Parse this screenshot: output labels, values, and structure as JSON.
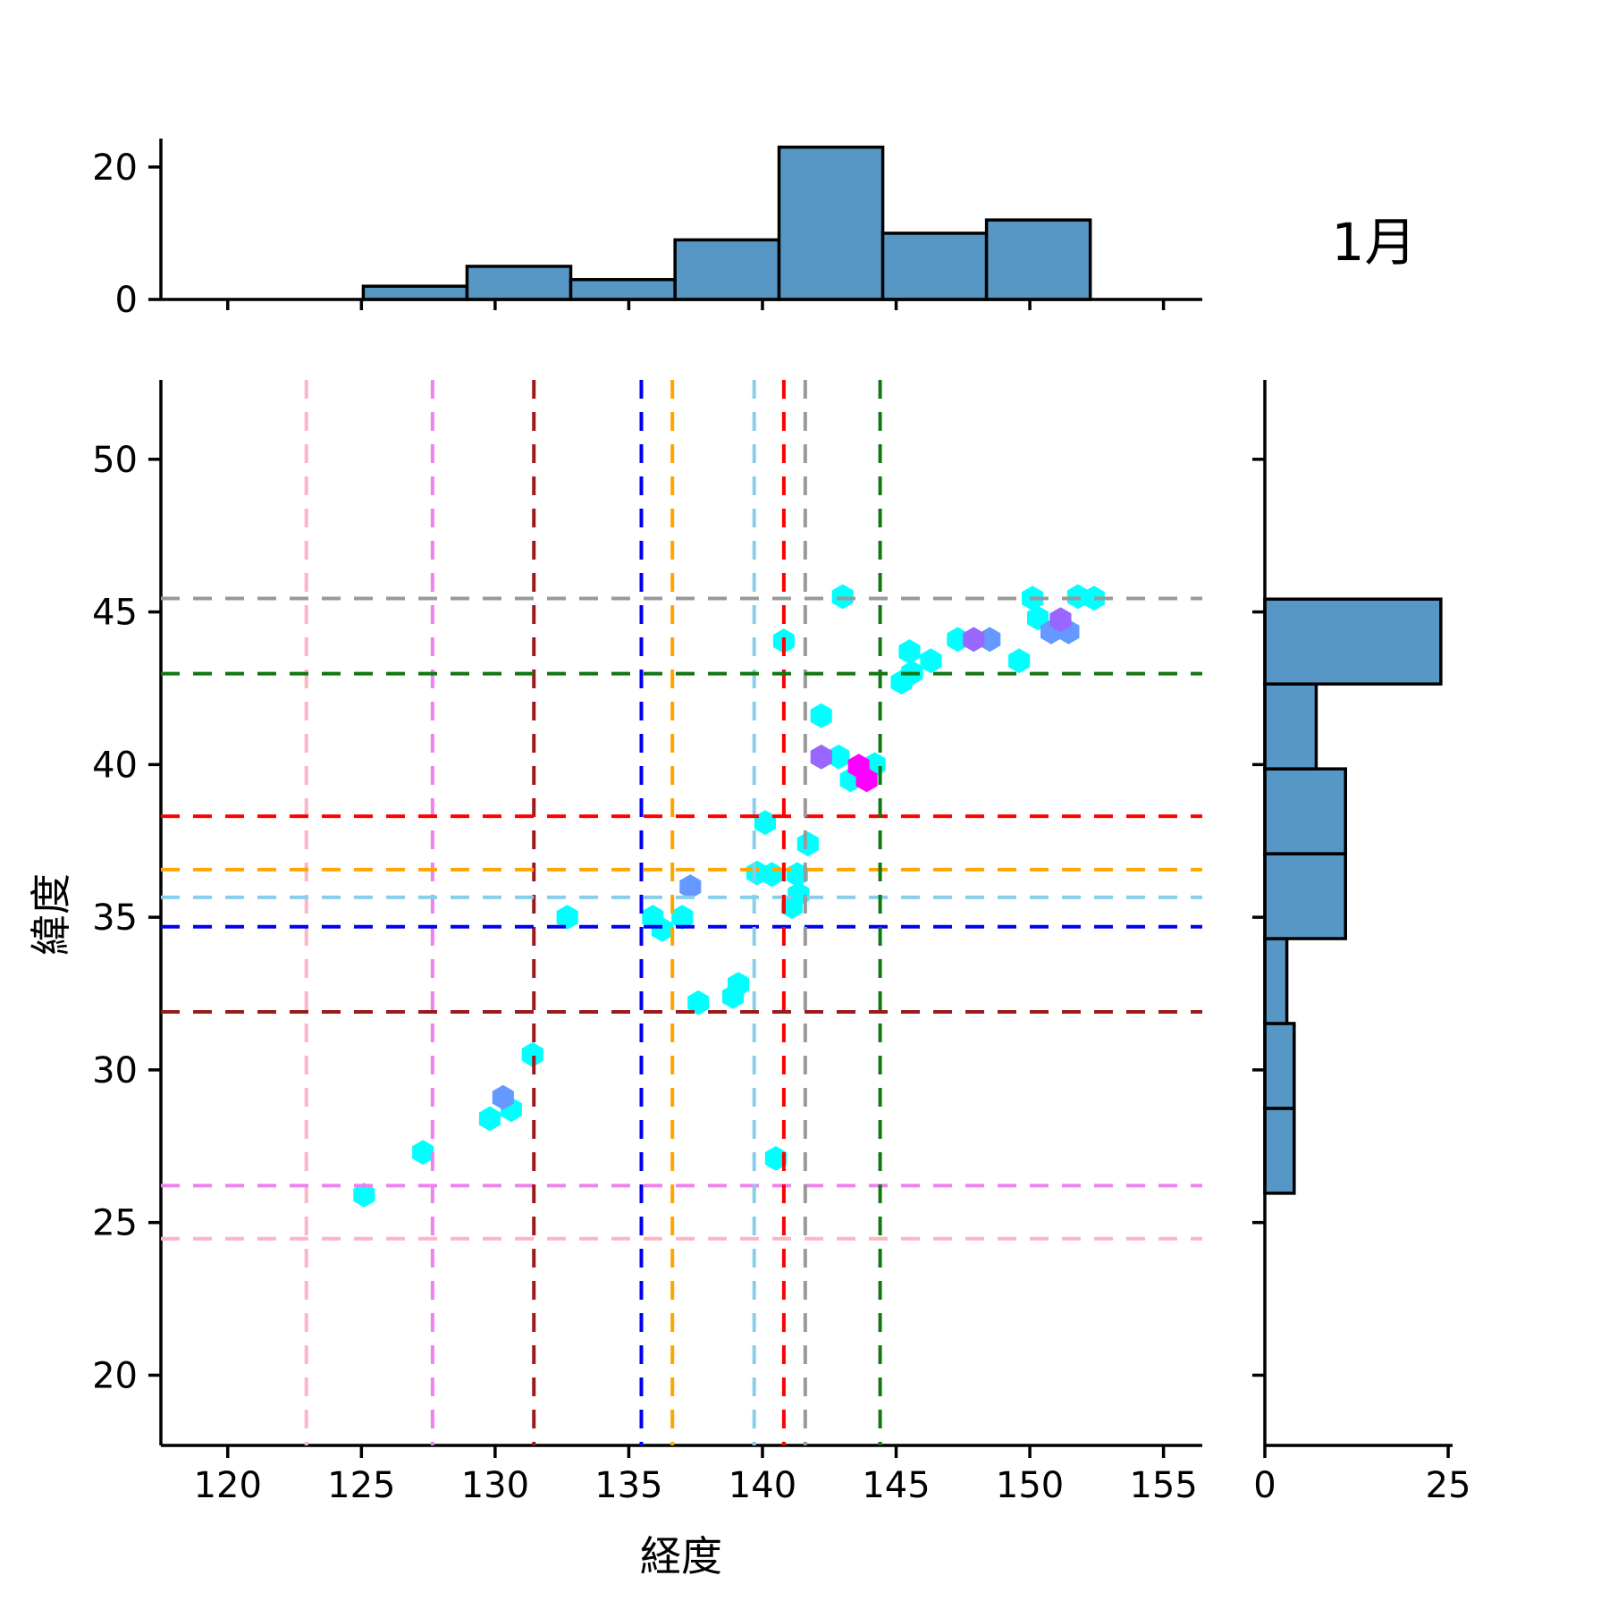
{
  "title": "1月",
  "axes": {
    "xlabel": "経度",
    "ylabel": "緯度"
  },
  "colors": {
    "bar_fill": "#5797c6",
    "bar_edge": "#000000",
    "spine": "#000000",
    "cyan": "#00ffff",
    "blue": "#6699ff",
    "purple": "#9966ff",
    "magenta": "#ff00ff"
  },
  "chart_data": [
    {
      "id": "top-histogram",
      "type": "bar",
      "orientation": "vertical",
      "title": "",
      "xlabel": "",
      "ylabel": "",
      "bin_edges": [
        125.07,
        128.95,
        132.83,
        136.73,
        140.62,
        144.5,
        148.38,
        152.26
      ],
      "counts": [
        2,
        5,
        3,
        9,
        23,
        10,
        12
      ],
      "xlim": [
        117.5,
        156.45
      ],
      "ylim": [
        0,
        24.3
      ],
      "yticks": [
        0,
        20
      ],
      "grid": false
    },
    {
      "id": "main-scatter",
      "type": "scatter",
      "marker": "hexagon",
      "xlabel": "経度",
      "ylabel": "緯度",
      "xlim": [
        117.5,
        156.45
      ],
      "ylim": [
        17.7,
        52.6
      ],
      "xticks": [
        120,
        125,
        130,
        135,
        140,
        145,
        150,
        155
      ],
      "yticks": [
        20,
        25,
        30,
        35,
        40,
        45,
        50
      ],
      "grid": false,
      "legend": "none",
      "series": [
        {
          "name": "cool-cmap-cyan",
          "color": "#00ffff",
          "points": [
            [
              143.0,
              45.5
            ],
            [
              150.1,
              45.45
            ],
            [
              151.8,
              45.5
            ],
            [
              152.4,
              45.45
            ],
            [
              150.3,
              44.8
            ],
            [
              147.3,
              44.1
            ],
            [
              140.8,
              44.05
            ],
            [
              149.6,
              43.4
            ],
            [
              145.5,
              43.7
            ],
            [
              146.3,
              43.4
            ],
            [
              145.6,
              43.0
            ],
            [
              145.2,
              42.7
            ],
            [
              142.2,
              41.6
            ],
            [
              142.85,
              40.25
            ],
            [
              144.2,
              40.0
            ],
            [
              143.3,
              39.5
            ],
            [
              140.1,
              38.1
            ],
            [
              141.7,
              37.4
            ],
            [
              139.8,
              36.45
            ],
            [
              140.35,
              36.4
            ],
            [
              141.3,
              36.4
            ],
            [
              141.35,
              35.75
            ],
            [
              141.1,
              35.35
            ],
            [
              132.7,
              35.0
            ],
            [
              135.9,
              35.0
            ],
            [
              137.0,
              35.0
            ],
            [
              136.25,
              34.6
            ],
            [
              139.1,
              32.8
            ],
            [
              138.9,
              32.4
            ],
            [
              137.6,
              32.2
            ],
            [
              131.4,
              30.5
            ],
            [
              130.6,
              28.7
            ],
            [
              129.8,
              28.4
            ],
            [
              127.3,
              27.3
            ],
            [
              140.5,
              27.1
            ],
            [
              125.1,
              25.9
            ]
          ]
        },
        {
          "name": "cool-cmap-blue",
          "color": "#6699ff",
          "points": [
            [
              150.8,
              44.35
            ],
            [
              151.45,
              44.35
            ],
            [
              148.5,
              44.1
            ],
            [
              137.3,
              36.0
            ],
            [
              130.3,
              29.1
            ]
          ]
        },
        {
          "name": "cool-cmap-purple",
          "color": "#9966ff",
          "points": [
            [
              151.15,
              44.75
            ],
            [
              147.9,
              44.1
            ],
            [
              142.2,
              40.25
            ]
          ]
        },
        {
          "name": "cool-cmap-magenta",
          "color": "#ff00ff",
          "points": [
            [
              143.6,
              39.95
            ],
            [
              143.9,
              39.5
            ]
          ]
        }
      ],
      "crosshairs": [
        {
          "name": "pink-crosshair",
          "color": "#ffb3c6",
          "x": 122.94,
          "y": 24.47
        },
        {
          "name": "violet-crosshair",
          "color": "#ee82ee",
          "x": 127.66,
          "y": 26.21
        },
        {
          "name": "darkred-crosshair",
          "color": "#9b1b1b",
          "x": 131.45,
          "y": 31.9
        },
        {
          "name": "blue-crosshair",
          "color": "#0000ee",
          "x": 135.47,
          "y": 34.69
        },
        {
          "name": "orange-crosshair",
          "color": "#ffa500",
          "x": 136.63,
          "y": 36.56
        },
        {
          "name": "lightblue-crosshair",
          "color": "#87ceeb",
          "x": 139.69,
          "y": 35.65
        },
        {
          "name": "red-crosshair",
          "color": "#ff0000",
          "x": 140.8,
          "y": 38.31
        },
        {
          "name": "gray-crosshair",
          "color": "#999999",
          "x": 141.6,
          "y": 45.44
        },
        {
          "name": "green-crosshair",
          "color": "#117711",
          "x": 144.4,
          "y": 42.98
        }
      ]
    },
    {
      "id": "right-histogram",
      "type": "bar",
      "orientation": "horizontal",
      "bin_edges": [
        25.96,
        28.74,
        31.52,
        34.3,
        37.08,
        39.86,
        42.64,
        45.42
      ],
      "counts": [
        4,
        4,
        3,
        11,
        11,
        7,
        24
      ],
      "xlim": [
        0,
        25.6
      ],
      "xticks": [
        0,
        25
      ],
      "grid": false
    }
  ]
}
